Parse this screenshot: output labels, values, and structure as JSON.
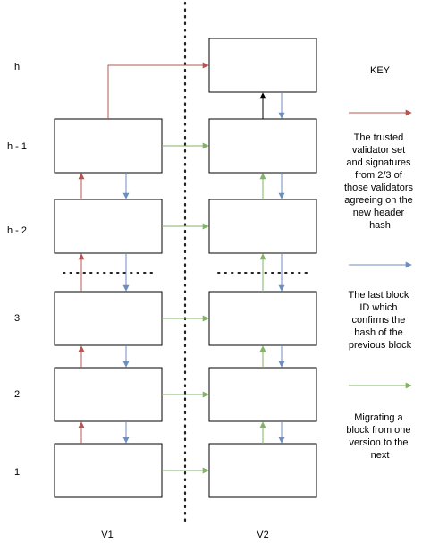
{
  "row_labels": [
    "h",
    "h - 1",
    "h - 2",
    "3",
    "2",
    "1"
  ],
  "columns": [
    "V1",
    "V2"
  ],
  "key": {
    "title": "KEY",
    "items": [
      {
        "color": "#b85450",
        "lines": [
          "The trusted",
          "validator set",
          "and signatures",
          "from 2/3 of",
          "those validators",
          "agreeing on the",
          "new header",
          "hash"
        ]
      },
      {
        "color": "#6c8ebf",
        "lines": [
          "The last block",
          "ID which",
          "confirms the",
          "hash of the",
          "previous block"
        ]
      },
      {
        "color": "#82b366",
        "lines": [
          "Migrating a",
          "block from one",
          "version to the",
          "next"
        ]
      }
    ]
  },
  "colors": {
    "red": "#b85450",
    "blue": "#6c8ebf",
    "green": "#82b366",
    "black": "#000000",
    "box_stroke": "#000000",
    "divider": "#222222"
  }
}
